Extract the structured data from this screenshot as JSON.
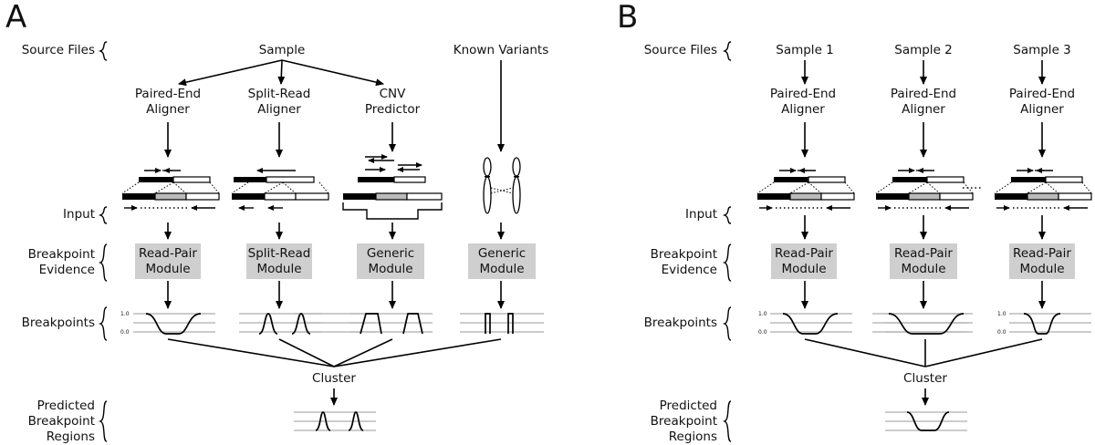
{
  "panels": [
    "A",
    "B"
  ],
  "row_labels": {
    "source_files": "Source Files",
    "input": "Input",
    "breakpoint_evidence": "Breakpoint\nEvidence",
    "breakpoints": "Breakpoints",
    "predicted": "Predicted\nBreakpoint\nRegions"
  },
  "panel_a": {
    "sample": "Sample",
    "known_variants": "Known Variants",
    "tools": [
      "Paired-End\nAligner",
      "Split-Read\nAligner",
      "CNV\nPredictor"
    ],
    "modules": [
      "Read-Pair\nModule",
      "Split-Read\nModule",
      "Generic\nModule",
      "Generic\nModule"
    ],
    "cluster": "Cluster"
  },
  "panel_b": {
    "samples": [
      "Sample 1",
      "Sample 2",
      "Sample 3"
    ],
    "tools": [
      "Paired-End\nAligner",
      "Paired-End\nAligner",
      "Paired-End\nAligner"
    ],
    "modules": [
      "Read-Pair\nModule",
      "Read-Pair\nModule",
      "Read-Pair\nModule"
    ],
    "cluster": "Cluster"
  },
  "axis_ticks": [
    "1.0",
    "0.0"
  ]
}
